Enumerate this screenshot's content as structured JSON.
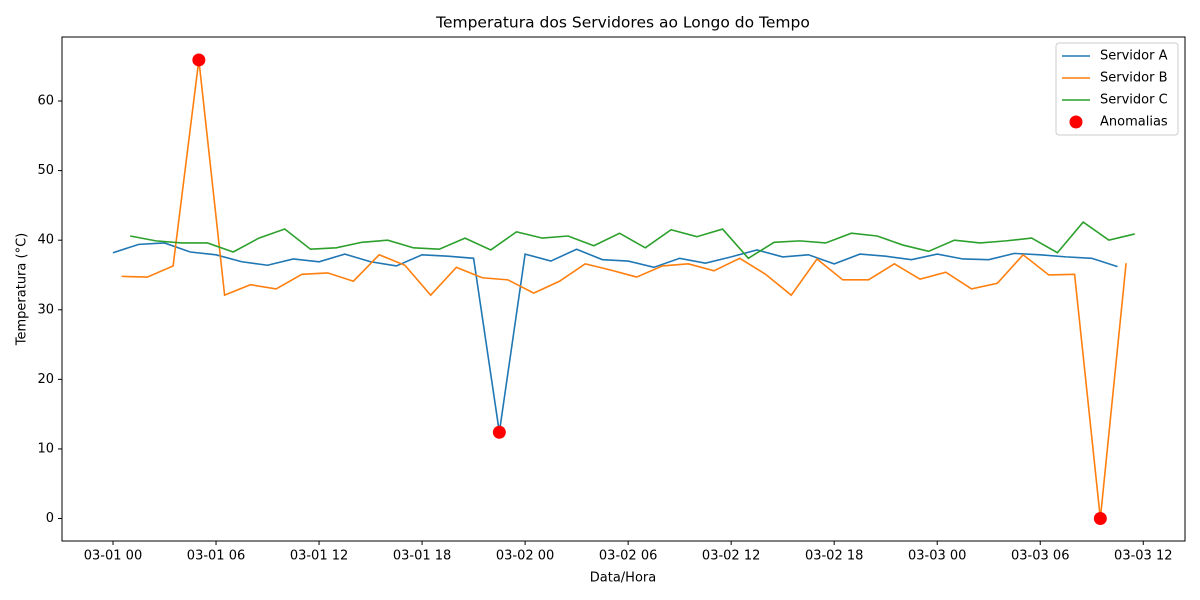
{
  "chart_data": {
    "type": "line",
    "title": "Temperatura dos Servidores ao Longo do Tempo",
    "x_label": "Data/Hora",
    "y_label": "Temperatura (°C)",
    "xlim": [
      -2.97,
      62.43
    ],
    "ylim": [
      -3.23,
      69.2
    ],
    "xticks": [
      {
        "value": 0,
        "label": "03-01 00"
      },
      {
        "value": 6,
        "label": "03-01 06"
      },
      {
        "value": 12,
        "label": "03-01 12"
      },
      {
        "value": 18,
        "label": "03-01 18"
      },
      {
        "value": 24,
        "label": "03-02 00"
      },
      {
        "value": 30,
        "label": "03-02 06"
      },
      {
        "value": 36,
        "label": "03-02 12"
      },
      {
        "value": 42,
        "label": "03-02 18"
      },
      {
        "value": 48,
        "label": "03-03 00"
      },
      {
        "value": 54,
        "label": "03-03 06"
      },
      {
        "value": 60,
        "label": "03-03 12"
      }
    ],
    "yticks": [
      0,
      10,
      20,
      30,
      40,
      50,
      60
    ],
    "legend": "upper right",
    "series": [
      {
        "name": "Servidor A",
        "color": "#1f77b4",
        "type": "line",
        "x": [
          0,
          1.5,
          3,
          4.5,
          6,
          7.5,
          9,
          10.5,
          12,
          13.5,
          15,
          16.5,
          18,
          19.5,
          21,
          22.5,
          24,
          25.5,
          27,
          28.5,
          30,
          31.5,
          33,
          34.5,
          36,
          37.5,
          39,
          40.5,
          42,
          43.5,
          45,
          46.5,
          48,
          49.5,
          51,
          52.5,
          54,
          55.5,
          57,
          58.5
        ],
        "values": [
          38.2,
          39.4,
          39.6,
          38.3,
          37.9,
          36.9,
          36.4,
          37.3,
          36.9,
          38.0,
          36.9,
          36.3,
          37.9,
          37.7,
          37.4,
          12.4,
          38.0,
          37.0,
          38.7,
          37.2,
          37.0,
          36.1,
          37.4,
          36.7,
          37.6,
          38.6,
          37.6,
          37.9,
          36.6,
          38.0,
          37.7,
          37.2,
          38.0,
          37.3,
          37.2,
          38.1,
          37.9,
          37.6,
          37.4,
          36.2
        ]
      },
      {
        "name": "Servidor B",
        "color": "#ff7f0e",
        "type": "line",
        "x": [
          0.5,
          2,
          3.5,
          5,
          6.5,
          8,
          9.5,
          11,
          12.5,
          14,
          15.5,
          17,
          18.5,
          20,
          21.5,
          23,
          24.5,
          26,
          27.5,
          29,
          30.5,
          32,
          33.5,
          35,
          36.5,
          38,
          39.5,
          41,
          42.5,
          44,
          45.5,
          47,
          48.5,
          50,
          51.5,
          53,
          54.5,
          56,
          57.5,
          59
        ],
        "values": [
          34.8,
          34.7,
          36.3,
          65.9,
          32.1,
          33.6,
          33.0,
          35.1,
          35.3,
          34.1,
          37.9,
          36.4,
          32.1,
          36.1,
          34.6,
          34.3,
          32.4,
          34.1,
          36.6,
          35.7,
          34.7,
          36.3,
          36.6,
          35.6,
          37.4,
          35.1,
          32.1,
          37.3,
          34.3,
          34.3,
          36.6,
          34.4,
          35.4,
          33.0,
          33.8,
          37.9,
          35.0,
          35.1,
          0,
          36.7
        ]
      },
      {
        "name": "Servidor C",
        "color": "#2ca02c",
        "type": "line",
        "x": [
          1,
          2.5,
          4,
          5.5,
          7,
          8.5,
          10,
          11.5,
          13,
          14.5,
          16,
          17.5,
          19,
          20.5,
          22,
          23.5,
          25,
          26.5,
          28,
          29.5,
          31,
          32.5,
          34,
          35.5,
          37,
          38.5,
          40,
          41.5,
          43,
          44.5,
          46,
          47.5,
          49,
          50.5,
          52,
          53.5,
          55,
          56.5,
          58,
          59.5
        ],
        "values": [
          40.6,
          39.9,
          39.6,
          39.6,
          38.3,
          40.3,
          41.6,
          38.7,
          38.9,
          39.7,
          40.0,
          38.9,
          38.7,
          40.3,
          38.6,
          41.2,
          40.3,
          40.6,
          39.2,
          41.0,
          38.9,
          41.5,
          40.5,
          41.6,
          37.4,
          39.7,
          39.9,
          39.6,
          41.0,
          40.6,
          39.3,
          38.4,
          40.0,
          39.6,
          39.9,
          40.3,
          38.2,
          42.6,
          40.0,
          40.9
        ]
      },
      {
        "name": "Anomalias",
        "color": "#ff0000",
        "type": "scatter",
        "x": [
          5,
          22.5,
          57.5
        ],
        "values": [
          65.9,
          12.4,
          0
        ]
      }
    ]
  }
}
